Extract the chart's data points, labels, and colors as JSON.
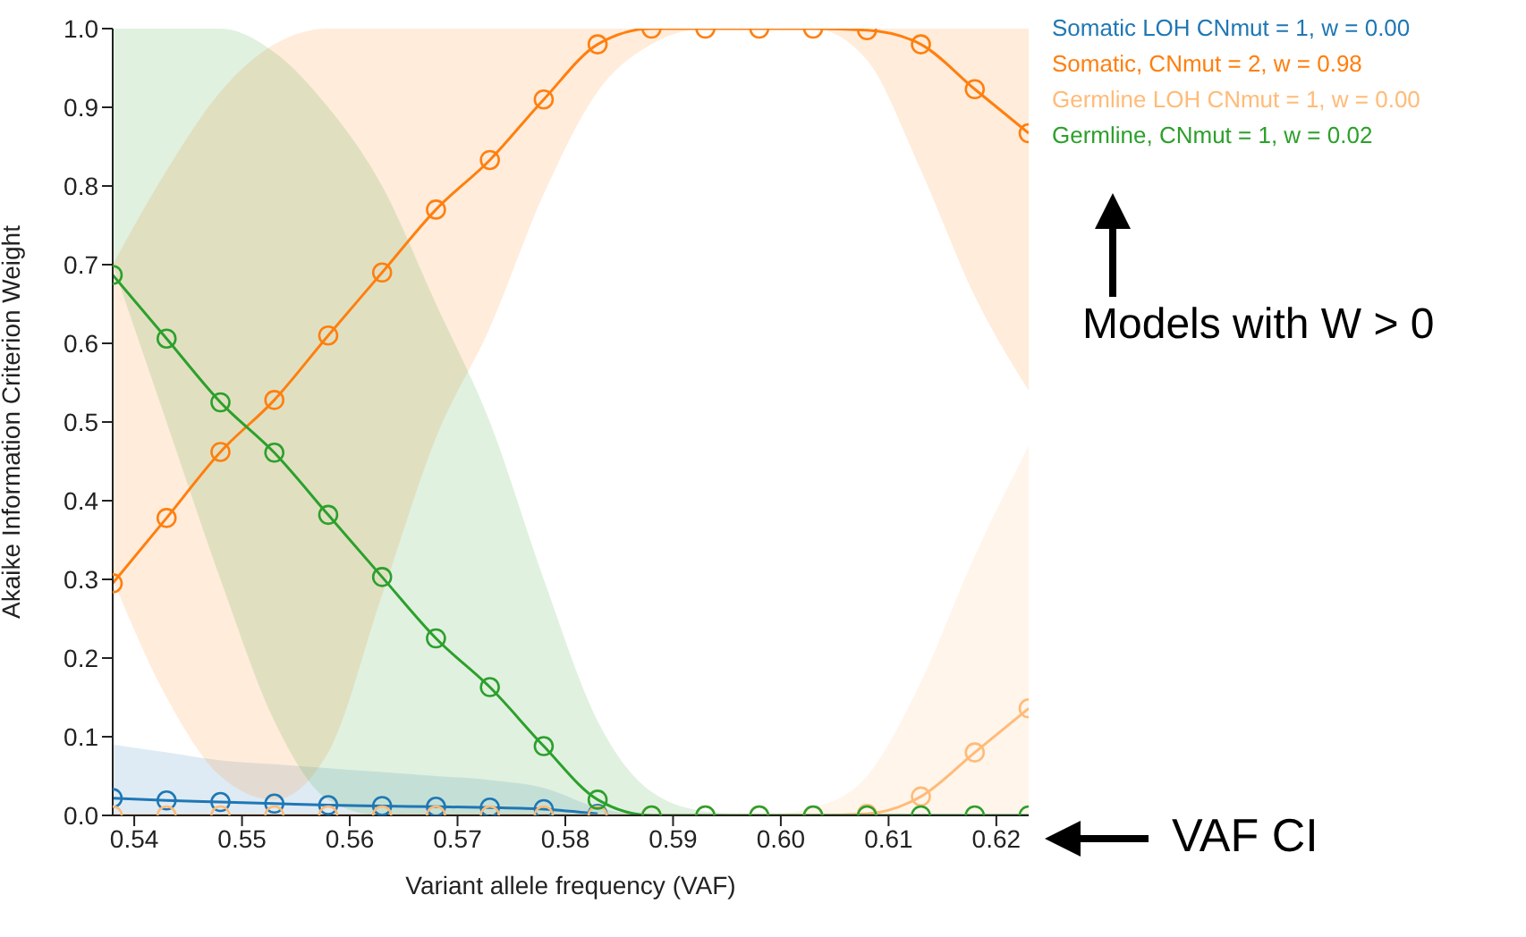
{
  "chart_data": {
    "type": "line",
    "xlabel": "Variant allele frequency (VAF)",
    "ylabel": "Akaike Information Criterion Weight",
    "x": [
      0.538,
      0.543,
      0.548,
      0.553,
      0.558,
      0.563,
      0.568,
      0.573,
      0.578,
      0.583,
      0.588,
      0.593,
      0.598,
      0.603,
      0.608,
      0.613,
      0.618,
      0.623
    ],
    "xlim": [
      0.538,
      0.623
    ],
    "ylim": [
      0,
      1
    ],
    "xticks": [
      {
        "value": 0.54,
        "label": "0.54"
      },
      {
        "value": 0.55,
        "label": "0.55"
      },
      {
        "value": 0.56,
        "label": "0.56"
      },
      {
        "value": 0.57,
        "label": "0.57"
      },
      {
        "value": 0.58,
        "label": "0.58"
      },
      {
        "value": 0.59,
        "label": "0.59"
      },
      {
        "value": 0.6,
        "label": "0.60"
      },
      {
        "value": 0.61,
        "label": "0.61"
      },
      {
        "value": 0.62,
        "label": "0.62"
      }
    ],
    "yticks": [
      {
        "value": 0,
        "label": "0.0"
      },
      {
        "value": 0.1,
        "label": "0.1"
      },
      {
        "value": 0.2,
        "label": "0.2"
      },
      {
        "value": 0.3,
        "label": "0.3"
      },
      {
        "value": 0.4,
        "label": "0.4"
      },
      {
        "value": 0.5,
        "label": "0.5"
      },
      {
        "value": 0.6,
        "label": "0.6"
      },
      {
        "value": 0.7,
        "label": "0.7"
      },
      {
        "value": 0.8,
        "label": "0.8"
      },
      {
        "value": 0.9,
        "label": "0.9"
      },
      {
        "value": 1,
        "label": "1.0"
      }
    ],
    "grid": false,
    "legend": "top right",
    "marker": "circle",
    "line_style": "solid",
    "series": [
      {
        "name": "Somatic LOH CNmut = 1, w = 0.00",
        "color": "#1f77b4",
        "values": [
          0.022,
          0.019,
          0.017,
          0.015,
          0.013,
          0.012,
          0.011,
          0.01,
          0.008,
          0.002,
          null,
          null,
          null,
          null,
          null,
          null,
          null,
          null
        ],
        "lower": [
          0,
          0,
          0,
          0,
          0,
          0,
          0,
          0,
          0,
          0,
          0,
          0,
          0,
          0,
          0,
          0,
          0,
          0
        ],
        "upper": [
          0.09,
          0.08,
          0.07,
          0.065,
          0.06,
          0.055,
          0.05,
          0.045,
          0.035,
          0.01,
          0,
          0,
          0,
          0,
          0,
          0,
          0,
          0
        ]
      },
      {
        "name": "Somatic, CNmut = 2, w = 0.98",
        "color": "#ff7f0e",
        "values": [
          0.295,
          0.378,
          0.462,
          0.528,
          0.61,
          0.69,
          0.77,
          0.833,
          0.91,
          0.98,
          1,
          1,
          1,
          1,
          0.998,
          0.98,
          0.923,
          0.867
        ],
        "lower": [
          0.3,
          0.15,
          0.05,
          0.02,
          0.08,
          0.28,
          0.48,
          0.62,
          0.79,
          0.92,
          0.98,
          1,
          1,
          1,
          0.96,
          0.82,
          0.66,
          0.54
        ],
        "upper": [
          0.7,
          0.82,
          0.92,
          0.98,
          1,
          1,
          1,
          1,
          1,
          1,
          1,
          1,
          1,
          1,
          1,
          1,
          1,
          1
        ]
      },
      {
        "name": "Germline LOH CNmut = 1, w = 0.00",
        "color": "#ffbb78",
        "values": [
          0,
          0,
          0,
          0,
          0,
          0,
          0,
          0,
          0,
          0,
          0,
          0,
          0,
          0,
          0.002,
          0.024,
          0.08,
          0.136
        ],
        "lower": [
          0,
          0,
          0,
          0,
          0,
          0,
          0,
          0,
          0,
          0,
          0,
          0,
          0,
          0,
          0,
          0,
          0,
          0
        ],
        "upper": [
          0,
          0,
          0,
          0,
          0,
          0,
          0,
          0,
          0,
          0,
          0,
          0,
          0,
          0.01,
          0.05,
          0.17,
          0.33,
          0.47
        ]
      },
      {
        "name": "Germline, CNmut = 1, w = 0.02",
        "color": "#2ca02c",
        "values": [
          0.687,
          0.606,
          0.525,
          0.461,
          0.382,
          0.303,
          0.225,
          0.163,
          0.088,
          0.02,
          0,
          0,
          0,
          0,
          0,
          0,
          0,
          0
        ],
        "lower": [
          0.7,
          0.5,
          0.3,
          0.12,
          0.02,
          0,
          0,
          0,
          0,
          0,
          0,
          0,
          0,
          0,
          0,
          0,
          0,
          0
        ],
        "upper": [
          1,
          1,
          1,
          0.97,
          0.9,
          0.8,
          0.65,
          0.5,
          0.3,
          0.12,
          0.03,
          0.005,
          0,
          0,
          0,
          0,
          0,
          0
        ]
      }
    ],
    "annotations": [
      "Models with W > 0",
      "VAF CI"
    ]
  }
}
